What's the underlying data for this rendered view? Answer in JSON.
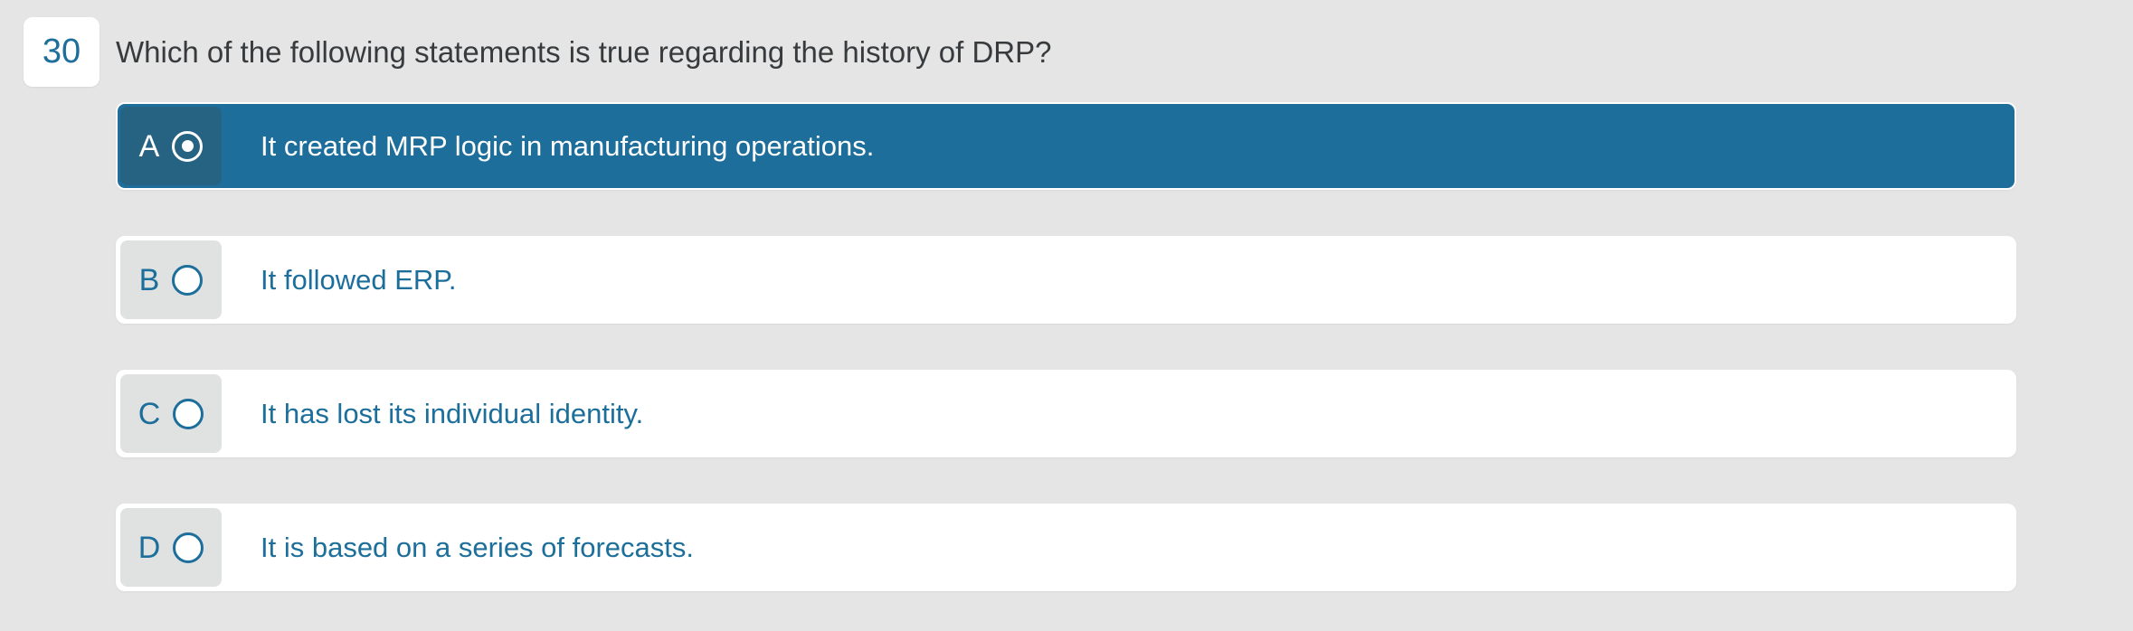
{
  "question": {
    "number": "30",
    "text": "Which of the following statements is true regarding the history of DRP?"
  },
  "options": [
    {
      "letter": "A",
      "text": "It created MRP logic in manufacturing operations.",
      "selected": true
    },
    {
      "letter": "B",
      "text": "It followed ERP.",
      "selected": false
    },
    {
      "letter": "C",
      "text": "It has lost its individual identity.",
      "selected": false
    },
    {
      "letter": "D",
      "text": "It is based on a series of forecasts.",
      "selected": false
    }
  ],
  "colors": {
    "background": "#e5e5e5",
    "selected_row": "#1d6e9b",
    "selected_label": "#266383",
    "label_gray": "#e0e1e1",
    "option_text": "#1d6f9b",
    "question_text": "#383b3d"
  }
}
